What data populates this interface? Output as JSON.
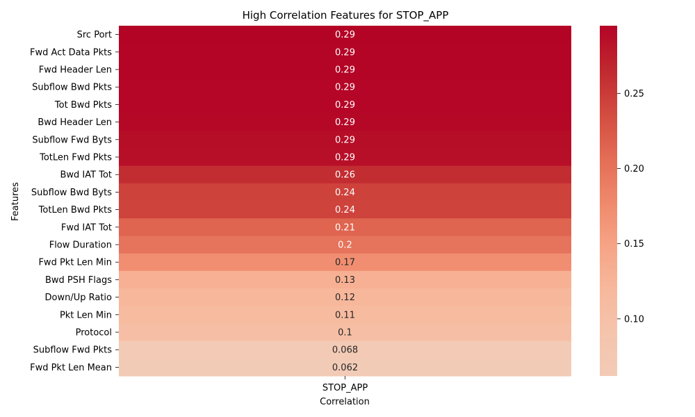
{
  "chart_data": {
    "type": "heatmap",
    "title": "High Correlation Features for STOP_APP",
    "xlabel": "Correlation",
    "ylabel": "Features",
    "columns": [
      "STOP_APP"
    ],
    "rows": [
      "Src Port",
      "Fwd Act Data Pkts",
      "Fwd Header Len",
      "Subflow Bwd Pkts",
      "Tot Bwd Pkts",
      "Bwd Header Len",
      "Subflow Fwd Byts",
      "TotLen Fwd Pkts",
      "Bwd IAT Tot",
      "Subflow Bwd Byts",
      "TotLen Bwd Pkts",
      "Fwd IAT Tot",
      "Flow Duration",
      "Fwd Pkt Len Min",
      "Bwd PSH Flags",
      "Down/Up Ratio",
      "Pkt Len Min",
      "Protocol",
      "Subflow Fwd Pkts",
      "Fwd Pkt Len Mean"
    ],
    "values": [
      0.295,
      0.294,
      0.294,
      0.293,
      0.293,
      0.292,
      0.287,
      0.286,
      0.262,
      0.244,
      0.243,
      0.214,
      0.2,
      0.172,
      0.132,
      0.121,
      0.114,
      0.103,
      0.068,
      0.062
    ],
    "value_labels": [
      "0.29",
      "0.29",
      "0.29",
      "0.29",
      "0.29",
      "0.29",
      "0.29",
      "0.29",
      "0.26",
      "0.24",
      "0.24",
      "0.21",
      "0.2",
      "0.17",
      "0.13",
      "0.12",
      "0.11",
      "0.1",
      "0.068",
      "0.062"
    ],
    "colorbar": {
      "vmin": 0.062,
      "vmax": 0.295,
      "ticks": [
        0.1,
        0.15,
        0.2,
        0.25
      ],
      "tick_labels": [
        "0.10",
        "0.15",
        "0.20",
        "0.25"
      ],
      "colormap": "coolwarm (upper half)",
      "colors": [
        "#f2cbb7",
        "#f5c4ac",
        "#f7b89c",
        "#f6a385",
        "#ef886b",
        "#e36c55",
        "#d24b40",
        "#c0282f",
        "#b40426"
      ]
    },
    "grid": false,
    "legend": "colorbar-right"
  }
}
